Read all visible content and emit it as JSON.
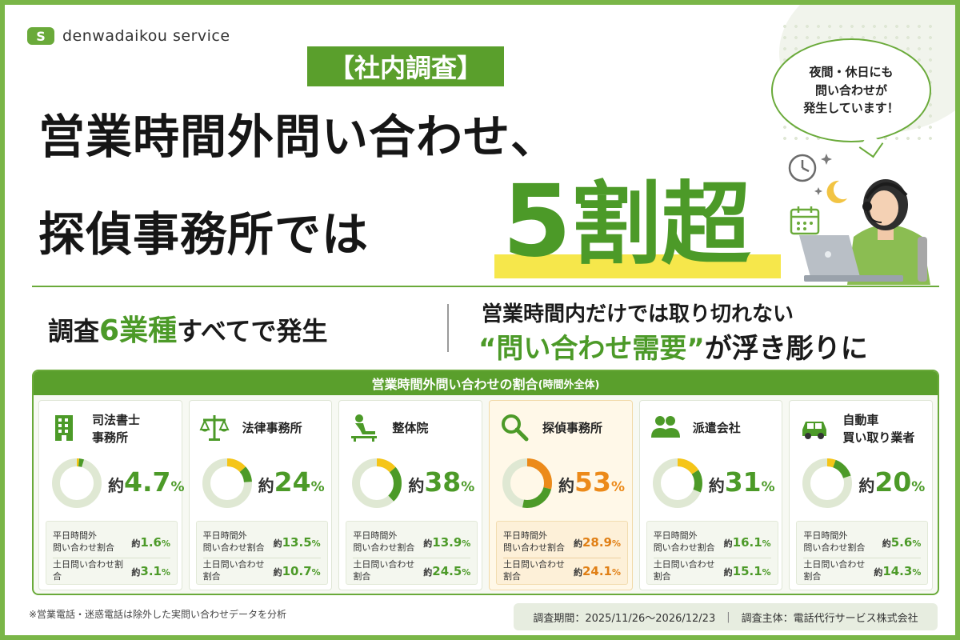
{
  "brand": {
    "logo_mark": "S",
    "name": "denwadaikou service"
  },
  "headline": {
    "tag": "【社内調査】",
    "line1": "営業時間外問い合わせ、",
    "line2": "探偵事務所では",
    "big_number": "5",
    "big_suffix": "割超"
  },
  "bubble": {
    "line1": "夜間・休日にも",
    "line2": "問い合わせが",
    "line3": "発生しています！"
  },
  "subbanner": {
    "left_pre": "調査",
    "left_accent": "6業種",
    "left_post": "すべてで発生",
    "right_line1": "営業時間内だけでは取り切れない",
    "right_accent": "“問い合わせ需要”",
    "right_post": "が浮き彫りに"
  },
  "panel": {
    "title": "営業時間外問い合わせの割合",
    "title_small": "(時間外全体)",
    "sub_label_weekday": "平日時間外\n問い合わせ割合",
    "sub_label_weekend": "土日問い合わせ割合",
    "approx": "約",
    "unit": "%",
    "cards": [
      {
        "title": "司法書士\n事務所",
        "icon": "building-icon",
        "total": "4.7",
        "weekday": "1.6",
        "weekend": "3.1",
        "ratio": 0.047,
        "highlight": false
      },
      {
        "title": "法律事務所",
        "icon": "scales-icon",
        "total": "24",
        "weekday": "13.5",
        "weekend": "10.7",
        "ratio": 0.24,
        "highlight": false
      },
      {
        "title": "整体院",
        "icon": "massage-icon",
        "total": "38",
        "weekday": "13.9",
        "weekend": "24.5",
        "ratio": 0.38,
        "highlight": false
      },
      {
        "title": "探偵事務所",
        "icon": "magnifier-icon",
        "total": "53",
        "weekday": "28.9",
        "weekend": "24.1",
        "ratio": 0.53,
        "highlight": true
      },
      {
        "title": "派遣会社",
        "icon": "people-icon",
        "total": "31",
        "weekday": "16.1",
        "weekend": "15.1",
        "ratio": 0.31,
        "highlight": false
      },
      {
        "title": "自動車\n買い取り業者",
        "icon": "car-icon",
        "total": "20",
        "weekday": "5.6",
        "weekend": "14.3",
        "ratio": 0.2,
        "highlight": false
      }
    ]
  },
  "footer": {
    "note": "※営業電話・迷惑電話は除外した実問い合わせデータを分析",
    "period": "調査期間：2025/11/26～2026/12/23",
    "separator": "|",
    "organizer": "調査主体：電話代行サービス株式会社"
  },
  "colors": {
    "green": "#4c9a28",
    "green_header": "#5a9f2c",
    "orange": "#ec8a1a",
    "yellow": "#f6e74b",
    "donut_track": "#dfe8d3",
    "donut_yellow": "#f5c518"
  }
}
